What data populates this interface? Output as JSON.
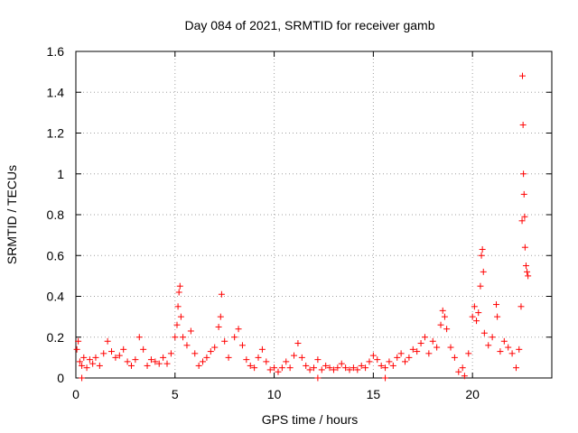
{
  "chart_data": {
    "type": "scatter",
    "title": "Day 084 of 2021, SRMTID for receiver gamb",
    "xlabel": "GPS time / hours",
    "ylabel": "SRMTID / TECUs",
    "xlim": [
      0,
      24
    ],
    "ylim": [
      0,
      1.6
    ],
    "grid": true,
    "marker": "+",
    "color": "#ff0000",
    "x_ticks": [
      0,
      5,
      10,
      15,
      20
    ],
    "x_tick_labels": [
      "0",
      "5",
      "10",
      "15",
      "20"
    ],
    "y_ticks": [
      0,
      0.2,
      0.4,
      0.6,
      0.8,
      1.0,
      1.2,
      1.4,
      1.6
    ],
    "y_tick_labels": [
      "0",
      "0.2",
      "0.4",
      "0.6",
      "0.8",
      "1",
      "1.2",
      "1.4",
      "1.6"
    ],
    "series": [
      {
        "name": "SRMTID",
        "points": [
          [
            0.05,
            0.14
          ],
          [
            0.12,
            0.18
          ],
          [
            0.2,
            0.08
          ],
          [
            0.3,
            0.06
          ],
          [
            0.4,
            0.1
          ],
          [
            0.55,
            0.05
          ],
          [
            0.7,
            0.09
          ],
          [
            0.85,
            0.07
          ],
          [
            1.0,
            0.1
          ],
          [
            1.2,
            0.06
          ],
          [
            1.4,
            0.12
          ],
          [
            1.6,
            0.18
          ],
          [
            1.8,
            0.13
          ],
          [
            2.0,
            0.1
          ],
          [
            2.2,
            0.11
          ],
          [
            2.4,
            0.14
          ],
          [
            2.6,
            0.08
          ],
          [
            2.8,
            0.06
          ],
          [
            3.0,
            0.09
          ],
          [
            3.2,
            0.2
          ],
          [
            3.4,
            0.14
          ],
          [
            3.6,
            0.06
          ],
          [
            3.8,
            0.09
          ],
          [
            4.0,
            0.08
          ],
          [
            4.2,
            0.07
          ],
          [
            4.4,
            0.1
          ],
          [
            4.6,
            0.07
          ],
          [
            4.8,
            0.12
          ],
          [
            5.0,
            0.2
          ],
          [
            5.1,
            0.26
          ],
          [
            5.15,
            0.35
          ],
          [
            5.2,
            0.42
          ],
          [
            5.25,
            0.45
          ],
          [
            5.3,
            0.3
          ],
          [
            5.4,
            0.2
          ],
          [
            5.6,
            0.16
          ],
          [
            5.8,
            0.23
          ],
          [
            6.0,
            0.12
          ],
          [
            6.2,
            0.06
          ],
          [
            6.4,
            0.08
          ],
          [
            6.6,
            0.1
          ],
          [
            6.8,
            0.13
          ],
          [
            7.0,
            0.15
          ],
          [
            7.2,
            0.25
          ],
          [
            7.3,
            0.3
          ],
          [
            7.35,
            0.41
          ],
          [
            7.5,
            0.18
          ],
          [
            7.7,
            0.1
          ],
          [
            8.0,
            0.2
          ],
          [
            8.2,
            0.24
          ],
          [
            8.4,
            0.16
          ],
          [
            8.6,
            0.09
          ],
          [
            8.8,
            0.06
          ],
          [
            9.0,
            0.05
          ],
          [
            9.2,
            0.1
          ],
          [
            9.4,
            0.14
          ],
          [
            9.6,
            0.08
          ],
          [
            9.8,
            0.04
          ],
          [
            10.0,
            0.05
          ],
          [
            10.2,
            0.03
          ],
          [
            10.4,
            0.05
          ],
          [
            10.6,
            0.08
          ],
          [
            10.8,
            0.05
          ],
          [
            11.0,
            0.11
          ],
          [
            11.2,
            0.17
          ],
          [
            11.4,
            0.1
          ],
          [
            11.6,
            0.06
          ],
          [
            11.8,
            0.04
          ],
          [
            12.0,
            0.05
          ],
          [
            12.2,
            0.09
          ],
          [
            12.4,
            0.04
          ],
          [
            12.6,
            0.06
          ],
          [
            12.8,
            0.05
          ],
          [
            13.0,
            0.04
          ],
          [
            13.2,
            0.05
          ],
          [
            13.4,
            0.07
          ],
          [
            13.6,
            0.05
          ],
          [
            13.8,
            0.04
          ],
          [
            14.0,
            0.05
          ],
          [
            14.2,
            0.04
          ],
          [
            14.4,
            0.06
          ],
          [
            14.6,
            0.05
          ],
          [
            14.8,
            0.08
          ],
          [
            15.0,
            0.11
          ],
          [
            15.2,
            0.09
          ],
          [
            15.4,
            0.06
          ],
          [
            15.6,
            0.05
          ],
          [
            15.8,
            0.08
          ],
          [
            16.0,
            0.06
          ],
          [
            16.2,
            0.1
          ],
          [
            16.4,
            0.12
          ],
          [
            16.6,
            0.08
          ],
          [
            16.8,
            0.1
          ],
          [
            17.0,
            0.14
          ],
          [
            17.2,
            0.13
          ],
          [
            17.4,
            0.17
          ],
          [
            17.6,
            0.2
          ],
          [
            17.8,
            0.12
          ],
          [
            18.0,
            0.18
          ],
          [
            18.2,
            0.15
          ],
          [
            18.4,
            0.26
          ],
          [
            18.5,
            0.33
          ],
          [
            18.6,
            0.3
          ],
          [
            18.7,
            0.24
          ],
          [
            18.9,
            0.15
          ],
          [
            19.1,
            0.1
          ],
          [
            19.3,
            0.03
          ],
          [
            19.5,
            0.05
          ],
          [
            19.6,
            0.01
          ],
          [
            19.8,
            0.12
          ],
          [
            20.0,
            0.3
          ],
          [
            20.1,
            0.35
          ],
          [
            20.2,
            0.28
          ],
          [
            20.3,
            0.32
          ],
          [
            20.4,
            0.45
          ],
          [
            20.45,
            0.6
          ],
          [
            20.5,
            0.63
          ],
          [
            20.55,
            0.52
          ],
          [
            20.6,
            0.22
          ],
          [
            20.8,
            0.16
          ],
          [
            21.0,
            0.2
          ],
          [
            21.2,
            0.36
          ],
          [
            21.25,
            0.3
          ],
          [
            21.4,
            0.13
          ],
          [
            21.6,
            0.18
          ],
          [
            21.8,
            0.15
          ],
          [
            22.0,
            0.12
          ],
          [
            22.2,
            0.05
          ],
          [
            22.35,
            0.14
          ],
          [
            22.45,
            0.35
          ],
          [
            22.5,
            0.77
          ],
          [
            22.52,
            1.48
          ],
          [
            22.55,
            1.24
          ],
          [
            22.57,
            1.0
          ],
          [
            22.6,
            0.9
          ],
          [
            22.63,
            0.79
          ],
          [
            22.65,
            0.64
          ],
          [
            22.7,
            0.55
          ],
          [
            22.75,
            0.52
          ],
          [
            22.8,
            0.5
          ]
        ],
        "zero_markers_x": [
          0.3,
          12.2,
          15.6
        ]
      }
    ]
  }
}
